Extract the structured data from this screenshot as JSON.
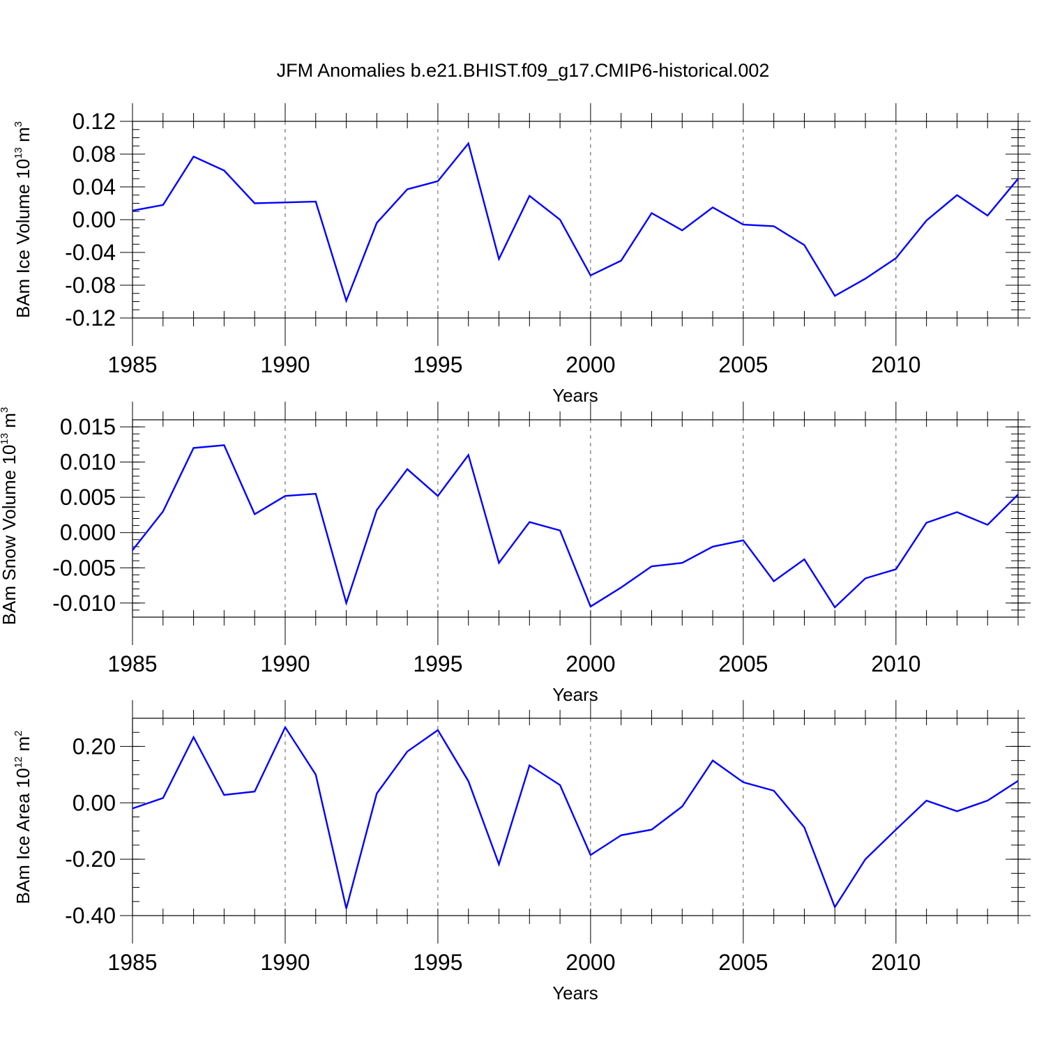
{
  "title": "JFM Anomalies b.e21.BHIST.f09_g17.CMIP6-historical.002",
  "colors": {
    "series": "#0000ff",
    "axis": "#000000",
    "grid": "#555555"
  },
  "chart_data": [
    {
      "type": "line",
      "ylabel_main": "BAm Ice Volume 10",
      "ylabel_exp": "13",
      "ylabel_unit": " m",
      "ylabel_unit_exp": "3",
      "xlabel": "Years",
      "xlim": [
        1985,
        2014
      ],
      "ylim": [
        -0.12,
        0.12
      ],
      "yticks": [
        -0.12,
        -0.08,
        -0.04,
        0.0,
        0.04,
        0.08,
        0.12
      ],
      "ytick_labels": [
        "-0.12",
        "-0.08",
        "-0.04",
        "0.00",
        "0.04",
        "0.08",
        "0.12"
      ],
      "yminor": 0.01,
      "xticks": [
        1985,
        1990,
        1995,
        2000,
        2005,
        2010
      ],
      "xtick_labels": [
        "1985",
        "1990",
        "1995",
        "2000",
        "2005",
        "2010"
      ],
      "x": [
        1985,
        1986,
        1987,
        1988,
        1989,
        1990,
        1991,
        1992,
        1993,
        1994,
        1995,
        1996,
        1997,
        1998,
        1999,
        2000,
        2001,
        2002,
        2003,
        2004,
        2005,
        2006,
        2007,
        2008,
        2009,
        2010,
        2011,
        2012,
        2013,
        2014
      ],
      "values": [
        0.011,
        0.018,
        0.077,
        0.06,
        0.02,
        0.021,
        0.022,
        -0.099,
        -0.004,
        0.037,
        0.047,
        0.093,
        -0.048,
        0.029,
        0.0,
        -0.068,
        -0.05,
        0.008,
        -0.013,
        0.015,
        -0.006,
        -0.008,
        -0.031,
        -0.093,
        -0.072,
        -0.047,
        -0.001,
        0.03,
        0.005,
        0.05
      ],
      "grid": "vertical dashed at major x ticks"
    },
    {
      "type": "line",
      "ylabel_main": "BAm Snow Volume 10",
      "ylabel_exp": "13",
      "ylabel_unit": " m",
      "ylabel_unit_exp": "3",
      "xlabel": "Years",
      "xlim": [
        1985,
        2014
      ],
      "ylim": [
        -0.012,
        0.016
      ],
      "yticks": [
        -0.01,
        -0.005,
        0.0,
        0.005,
        0.01,
        0.015
      ],
      "ytick_labels": [
        "-0.010",
        "-0.005",
        "0.000",
        "0.005",
        "0.010",
        "0.015"
      ],
      "yminor": 0.001,
      "xticks": [
        1985,
        1990,
        1995,
        2000,
        2005,
        2010
      ],
      "xtick_labels": [
        "1985",
        "1990",
        "1995",
        "2000",
        "2005",
        "2010"
      ],
      "x": [
        1985,
        1986,
        1987,
        1988,
        1989,
        1990,
        1991,
        1992,
        1993,
        1994,
        1995,
        1996,
        1997,
        1998,
        1999,
        2000,
        2001,
        2002,
        2003,
        2004,
        2005,
        2006,
        2007,
        2008,
        2009,
        2010,
        2011,
        2012,
        2013,
        2014
      ],
      "values": [
        -0.0025,
        0.003,
        0.012,
        0.0124,
        0.0026,
        0.0052,
        0.0055,
        -0.01,
        0.0032,
        0.009,
        0.0052,
        0.011,
        -0.0043,
        0.0015,
        0.0003,
        -0.0105,
        -0.0078,
        -0.0048,
        -0.0043,
        -0.002,
        -0.0011,
        -0.0069,
        -0.0038,
        -0.0106,
        -0.0065,
        -0.0052,
        0.0014,
        0.0029,
        0.0011,
        0.0054
      ],
      "grid": "vertical dashed at major x ticks"
    },
    {
      "type": "line",
      "ylabel_main": "BAm Ice Area 10",
      "ylabel_exp": "12",
      "ylabel_unit": " m",
      "ylabel_unit_exp": "2",
      "xlabel": "Years",
      "xlim": [
        1985,
        2014
      ],
      "ylim": [
        -0.4,
        0.3
      ],
      "yticks": [
        -0.4,
        -0.2,
        0.0,
        0.2
      ],
      "ytick_labels": [
        "-0.40",
        "-0.20",
        "0.00",
        "0.20"
      ],
      "yminor": 0.05,
      "xticks": [
        1985,
        1990,
        1995,
        2000,
        2005,
        2010
      ],
      "xtick_labels": [
        "1985",
        "1990",
        "1995",
        "2000",
        "2005",
        "2010"
      ],
      "x": [
        1985,
        1986,
        1987,
        1988,
        1989,
        1990,
        1991,
        1992,
        1993,
        1994,
        1995,
        1996,
        1997,
        1998,
        1999,
        2000,
        2001,
        2002,
        2003,
        2004,
        2005,
        2006,
        2007,
        2008,
        2009,
        2010,
        2011,
        2012,
        2013,
        2014
      ],
      "values": [
        -0.02,
        0.017,
        0.233,
        0.028,
        0.04,
        0.268,
        0.1,
        -0.375,
        0.033,
        0.182,
        0.258,
        0.077,
        -0.218,
        0.133,
        0.063,
        -0.185,
        -0.115,
        -0.095,
        -0.013,
        0.15,
        0.073,
        0.043,
        -0.087,
        -0.37,
        -0.2,
        -0.095,
        0.008,
        -0.03,
        0.008,
        0.078
      ],
      "grid": "vertical dashed at major x ticks"
    }
  ]
}
